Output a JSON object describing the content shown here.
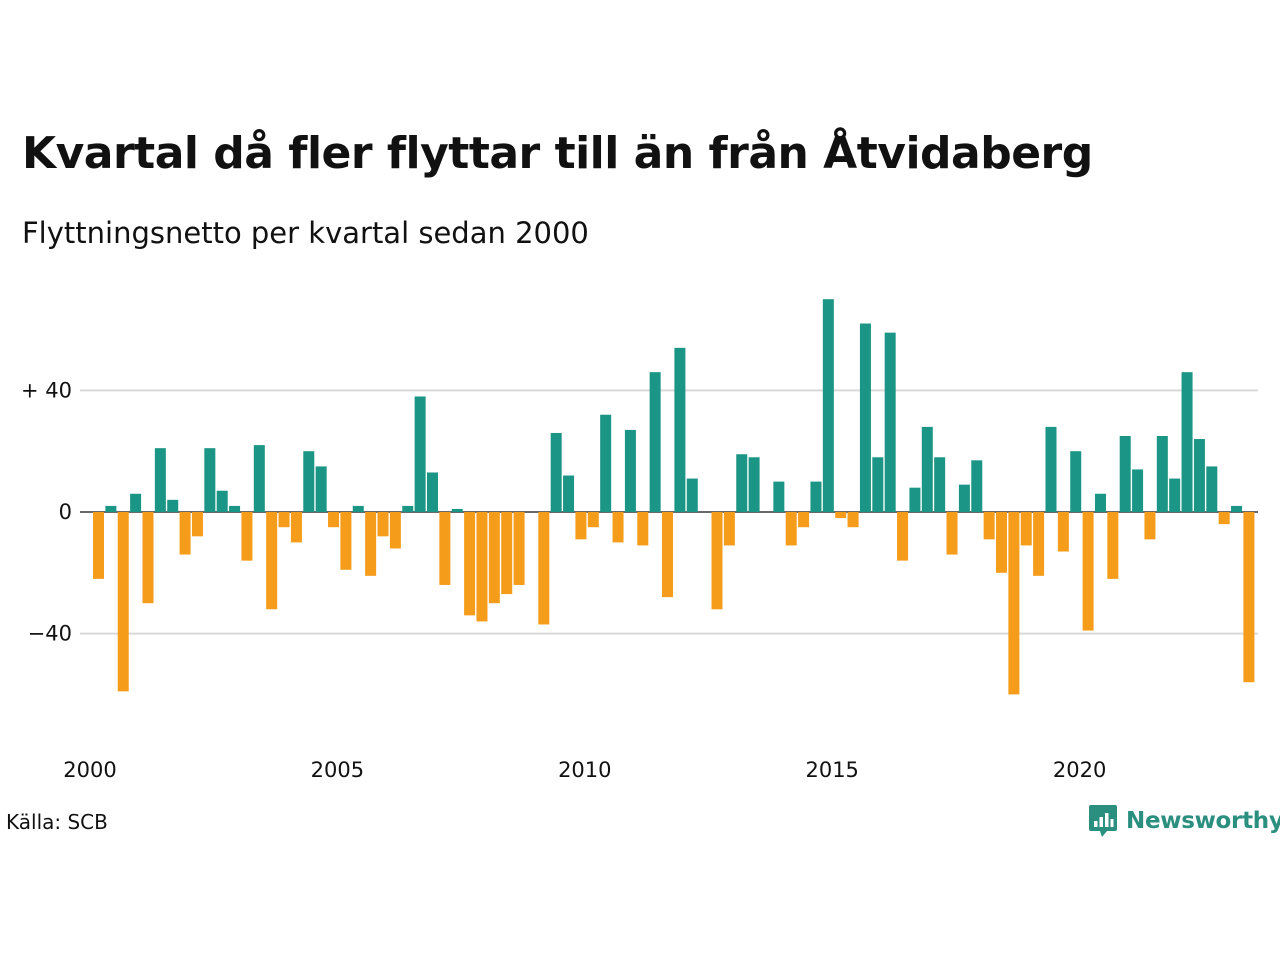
{
  "title": "Kvartal då fler flyttar till än från Åtvidaberg",
  "subtitle": "Flyttningsnetto per kvartal sedan 2000",
  "source": "Källa: SCB",
  "brand": "Newsworthy",
  "colors": {
    "positive": "#1b9585",
    "negative": "#f59c1a",
    "grid": "#d9d9d9",
    "logo": "#2b8f80"
  },
  "chart_data": {
    "type": "bar",
    "ylim": [
      -70,
      70
    ],
    "yticks": [
      40,
      0,
      -40
    ],
    "ytick_labels": [
      "+ 40",
      "0",
      "−40"
    ],
    "xticks": [
      2000,
      2005,
      2010,
      2015,
      2020
    ],
    "xtick_labels": [
      "2000",
      "2005",
      "2010",
      "2015",
      "2020"
    ],
    "start_year": 2000,
    "values": [
      -22,
      2,
      -59,
      6,
      -30,
      21,
      4,
      -14,
      -8,
      21,
      7,
      2,
      -16,
      22,
      -32,
      -5,
      -10,
      20,
      15,
      -5,
      -19,
      2,
      -21,
      -8,
      -12,
      2,
      38,
      13,
      -24,
      1,
      -34,
      -36,
      -30,
      -27,
      -24,
      0,
      -37,
      26,
      12,
      -9,
      -5,
      32,
      -10,
      27,
      -11,
      46,
      -28,
      54,
      11,
      0,
      -32,
      -11,
      19,
      18,
      0,
      10,
      -11,
      -5,
      10,
      70,
      -2,
      -5,
      62,
      18,
      59,
      -16,
      8,
      28,
      18,
      -14,
      9,
      17,
      -9,
      -20,
      -60,
      -11,
      -21,
      28,
      -13,
      20,
      -39,
      6,
      -22,
      25,
      14,
      -9,
      25,
      11,
      46,
      24,
      15,
      -4,
      2,
      -56
    ]
  }
}
